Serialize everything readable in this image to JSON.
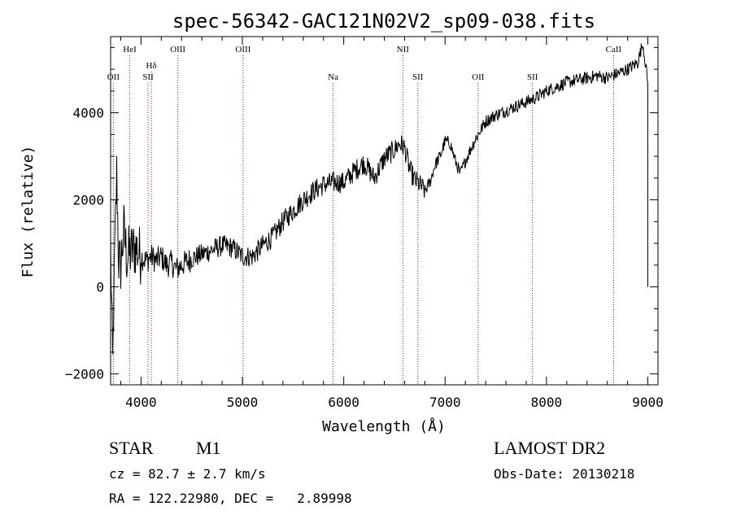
{
  "chart_data": {
    "type": "line",
    "title": "spec-56342-GAC121N02V2_sp09-038.fits",
    "xlabel": "Wavelength (Å)",
    "ylabel": "Flux (relative)",
    "xlim": [
      3700,
      9100
    ],
    "ylim": [
      -2250,
      5750
    ],
    "x_ticks": [
      4000,
      5000,
      6000,
      7000,
      8000,
      9000
    ],
    "x_tick_labels": [
      "4000",
      "5000",
      "6000",
      "7000",
      "8000",
      "9000"
    ],
    "y_ticks": [
      -2000,
      0,
      2000,
      4000
    ],
    "y_tick_labels": [
      "−2000",
      "0",
      "2000",
      "4000"
    ],
    "grid": false,
    "line_color": "#000000",
    "marker_color": "#8b1a1a",
    "series": [
      {
        "x": [
          3700,
          3720,
          3740,
          3760,
          3780,
          3800,
          3830,
          3860,
          3900,
          3950,
          4000,
          4050,
          4100,
          4150,
          4200,
          4250,
          4300,
          4350,
          4400,
          4500,
          4600,
          4700,
          4800,
          4900,
          5000,
          5100,
          5200,
          5300,
          5400,
          5500,
          5600,
          5700,
          5800,
          5900,
          6000,
          6100,
          6200,
          6300,
          6400,
          6500,
          6550,
          6600,
          6650,
          6700,
          6750,
          6800,
          6850,
          6900,
          6950,
          7000,
          7050,
          7100,
          7150,
          7200,
          7300,
          7400,
          7500,
          7600,
          7700,
          7800,
          7900,
          8000,
          8100,
          8200,
          8300,
          8400,
          8500,
          8600,
          8700,
          8800,
          8900,
          8950,
          9000
        ],
        "y": [
          900,
          -1800,
          700,
          2600,
          600,
          500,
          1300,
          700,
          800,
          900,
          700,
          600,
          700,
          600,
          700,
          500,
          550,
          400,
          500,
          650,
          750,
          850,
          950,
          900,
          700,
          700,
          950,
          1150,
          1500,
          1750,
          2000,
          2200,
          2350,
          2400,
          2400,
          2650,
          2850,
          2500,
          2950,
          3150,
          3300,
          3200,
          2700,
          2450,
          2350,
          2200,
          2400,
          2800,
          3000,
          3350,
          3300,
          2900,
          2600,
          2900,
          3400,
          3800,
          3950,
          4050,
          4150,
          4250,
          4350,
          4500,
          4600,
          4700,
          4750,
          4800,
          4850,
          4800,
          4900,
          5000,
          5150,
          5600,
          4700
        ]
      }
    ],
    "spectral_lines": [
      {
        "name": "OII",
        "wavelength": 3727
      },
      {
        "name": "HeI",
        "wavelength": 3889
      },
      {
        "name": "Hδ",
        "wavelength": 4102
      },
      {
        "name": "SII",
        "wavelength": 4070
      },
      {
        "name": "OIII",
        "wavelength": 4363
      },
      {
        "name": "OIII",
        "wavelength": 5007
      },
      {
        "name": "Na",
        "wavelength": 5895
      },
      {
        "name": "NII",
        "wavelength": 6583
      },
      {
        "name": "SII",
        "wavelength": 6731
      },
      {
        "name": "OII",
        "wavelength": 7325
      },
      {
        "name": "SII",
        "wavelength": 7862
      },
      {
        "name": "CaII",
        "wavelength": 8662
      }
    ]
  },
  "footer": {
    "object_class": "STAR",
    "subclass": "M1",
    "survey": "LAMOST DR2",
    "redshift_line": "cz = 82.7 ± 2.7 km/s",
    "obs_date_line": "Obs-Date: 20130218",
    "coords_line": "RA = 122.22980, DEC =   2.89998"
  }
}
